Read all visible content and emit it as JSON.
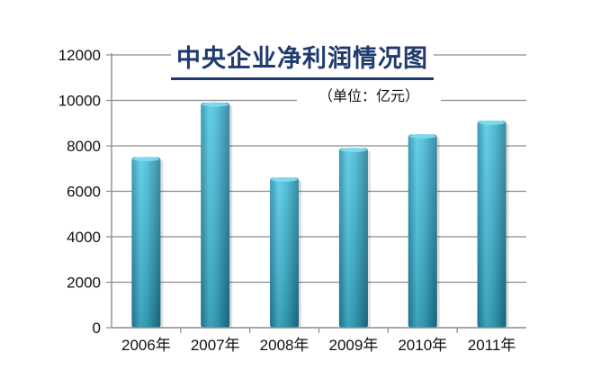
{
  "chart_data": {
    "type": "bar",
    "title": "中央企业净利润情况图",
    "subtitle": "（单位：亿元）",
    "categories": [
      "2006年",
      "2007年",
      "2008年",
      "2009年",
      "2010年",
      "2011年"
    ],
    "values": [
      7500,
      9900,
      6600,
      7900,
      8500,
      9100
    ],
    "ylim": [
      0,
      12000
    ],
    "yticks": [
      0,
      2000,
      4000,
      6000,
      8000,
      10000,
      12000
    ],
    "grid": true,
    "bar_color": "#3fb6d3",
    "bar_color_dark": "#1e7f99"
  }
}
